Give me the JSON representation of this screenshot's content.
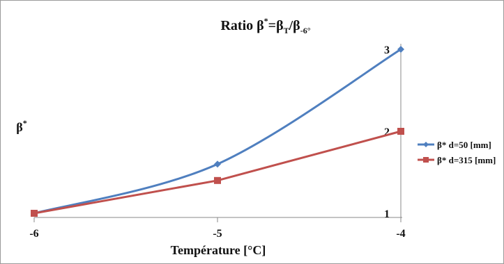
{
  "chart_data": {
    "type": "line",
    "title": "Ratio β*=βT/β-6°",
    "title_parts": {
      "main": "Ratio β",
      "sup1": "*",
      "eq": "=β",
      "sub1": "T",
      "slash": "/β",
      "sub2": "-6°"
    },
    "xlabel": "Température [°C]",
    "ylabel": "β*",
    "ylabel_parts": {
      "main": "β",
      "sup": "*"
    },
    "x": [
      -6,
      -5,
      -4
    ],
    "x_tick_labels": [
      "-6",
      "-5",
      "-4"
    ],
    "xlim": [
      -6,
      -4
    ],
    "y_tick_labels": [
      "1",
      "2",
      "3"
    ],
    "ylim": [
      1,
      3
    ],
    "grid": "vertical line at x = -4",
    "legend_position": "right",
    "series": [
      {
        "name": "β* d=50 [mm]",
        "values": [
          1.0,
          1.6,
          3.0
        ],
        "color": "#4f7fbf",
        "marker": "diamond"
      },
      {
        "name": "β* d=315 [mm]",
        "values": [
          1.0,
          1.4,
          2.0
        ],
        "color": "#c0504d",
        "marker": "square"
      }
    ]
  },
  "colors": {
    "axis": "#8a8a8a",
    "series_1": "#4f7fbf",
    "series_2": "#c0504d"
  }
}
